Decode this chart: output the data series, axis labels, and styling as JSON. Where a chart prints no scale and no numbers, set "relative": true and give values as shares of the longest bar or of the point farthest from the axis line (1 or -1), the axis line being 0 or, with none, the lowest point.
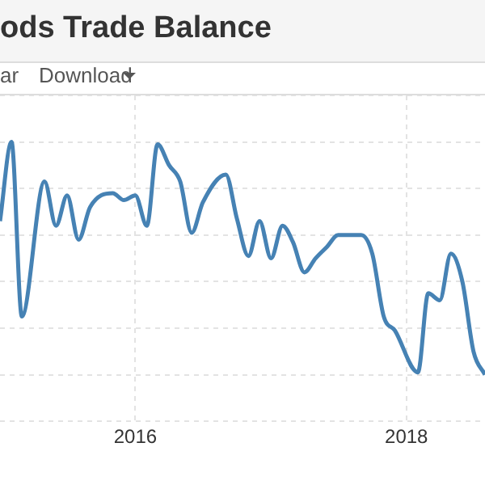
{
  "chart_data": {
    "type": "line",
    "title": "ods Trade Balance",
    "annotations": [
      "ar",
      "Download"
    ],
    "relative": true,
    "grid": true,
    "legend": false,
    "marker": "none",
    "line_style": "solid",
    "xlim": [
      "2015-01",
      "2018-08"
    ],
    "xticks": [
      "2016",
      "2018"
    ],
    "x": [
      "2015-01",
      "2015-02",
      "2015-03",
      "2015-05",
      "2015-06",
      "2015-07",
      "2015-08",
      "2015-09",
      "2015-11",
      "2015-12",
      "2016-01",
      "2016-02",
      "2016-03",
      "2016-04",
      "2016-05",
      "2016-06",
      "2016-07",
      "2016-09",
      "2016-10",
      "2016-11",
      "2016-12",
      "2017-01",
      "2017-02",
      "2017-03",
      "2017-04",
      "2017-05",
      "2017-06",
      "2017-07",
      "2017-09",
      "2017-10",
      "2017-11",
      "2017-12",
      "2018-02",
      "2018-03",
      "2018-04",
      "2018-05",
      "2018-06",
      "2018-07",
      "2018-08"
    ],
    "series": [
      {
        "color": "#4682b4",
        "values": [
          0.66,
          1,
          0.25,
          0.83,
          0.64,
          0.77,
          0.58,
          0.72,
          0.78,
          0.75,
          0.77,
          0.64,
          0.99,
          0.9,
          0.83,
          0.61,
          0.74,
          0.86,
          0.67,
          0.51,
          0.66,
          0.5,
          0.64,
          0.57,
          0.44,
          0.5,
          0.55,
          0.6,
          0.6,
          0.52,
          0.25,
          0.19,
          0.01,
          0.35,
          0.32,
          0.52,
          0.4,
          0.1,
          0
        ]
      }
    ]
  }
}
